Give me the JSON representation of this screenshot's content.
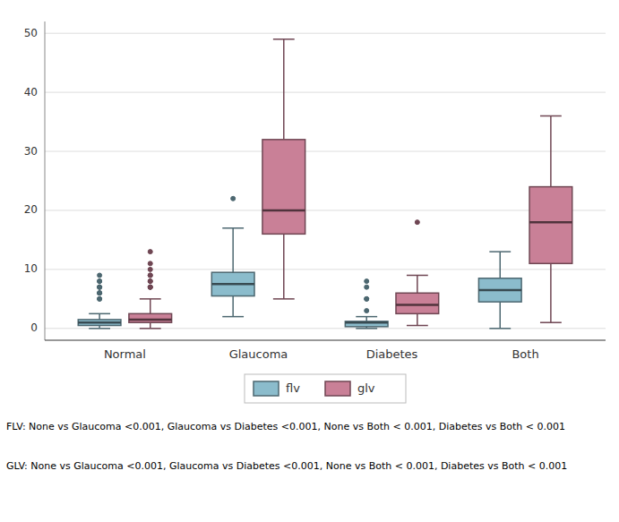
{
  "chart_data": {
    "type": "box",
    "categories": [
      "Normal",
      "Glaucoma",
      "Diabetes",
      "Both"
    ],
    "series": [
      {
        "name": "flv",
        "color": "#8bbccc",
        "q1": [
          0.5,
          5.5,
          0.3,
          4.5
        ],
        "median": [
          1.0,
          7.5,
          1.0,
          6.5
        ],
        "q3": [
          1.5,
          9.5,
          1.2,
          8.5
        ],
        "whislo": [
          0.0,
          2.0,
          0.0,
          0.0
        ],
        "whishi": [
          2.5,
          17.0,
          2.0,
          13.0
        ],
        "fliers": [
          [
            9,
            7,
            6,
            5,
            8,
            8,
            7,
            7,
            6,
            6,
            5
          ],
          [
            22
          ],
          [
            8,
            7,
            5,
            5,
            3
          ],
          []
        ]
      },
      {
        "name": "glv",
        "color": "#c98097",
        "q1": [
          1.0,
          16.0,
          2.5,
          11.0
        ],
        "median": [
          1.5,
          20.0,
          4.0,
          18.0
        ],
        "q3": [
          2.5,
          32.0,
          6.0,
          24.0
        ],
        "whislo": [
          0.0,
          5.0,
          0.5,
          1.0
        ],
        "whishi": [
          5.0,
          49.0,
          9.0,
          36.0
        ],
        "fliers": [
          [
            13,
            11,
            10,
            9,
            8,
            7,
            7,
            7,
            8,
            9
          ],
          [],
          [
            18
          ],
          []
        ]
      }
    ],
    "ylim": [
      -2,
      52
    ],
    "yticks": [
      0,
      10,
      20,
      30,
      40,
      50
    ],
    "grid": true,
    "legend": "bottom",
    "annotations": [
      "FLV: None vs Glaucoma <0.001, Glaucoma vs Diabetes <0.001, None vs Both < 0.001, Diabetes vs Both < 0.001",
      "GLV: None vs Glaucoma <0.001, Glaucoma vs Diabetes <0.001, None vs Both < 0.001, Diabetes vs Both < 0.001"
    ]
  }
}
